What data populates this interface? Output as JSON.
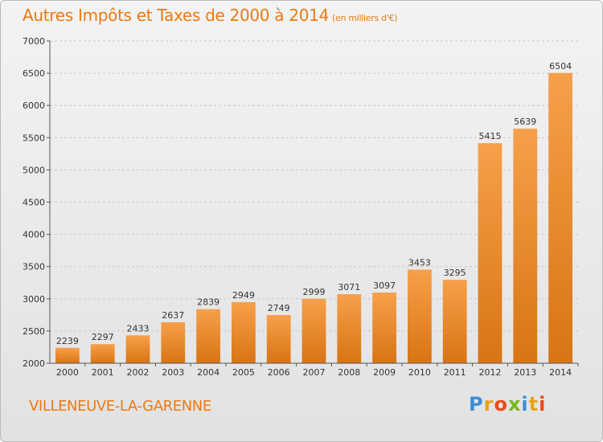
{
  "header": {
    "title": "Autres Impôts et Taxes de 2000 à 2014",
    "unit": "(en milliers d'€)"
  },
  "footer": {
    "town": "VILLENEUVE-LA-GARENNE",
    "logo": {
      "letters": [
        "P",
        "r",
        "o",
        "x",
        "i",
        "t",
        "i"
      ],
      "colors": [
        "#3a8fd6",
        "#e8a21a",
        "#e84c1a",
        "#78b81e",
        "#3a8fd6",
        "#e8a21a",
        "#e84c1a"
      ]
    }
  },
  "chart_data": {
    "type": "bar",
    "categories": [
      "2000",
      "2001",
      "2002",
      "2003",
      "2004",
      "2005",
      "2006",
      "2007",
      "2008",
      "2009",
      "2010",
      "2011",
      "2012",
      "2013",
      "2014"
    ],
    "values": [
      2239,
      2297,
      2433,
      2637,
      2839,
      2949,
      2749,
      2999,
      3071,
      3097,
      3453,
      3295,
      5415,
      5639,
      6504
    ],
    "title": "Autres Impôts et Taxes de 2000 à 2014",
    "xlabel": "",
    "ylabel": "",
    "ylim": [
      2000,
      7000
    ],
    "yticks": [
      2000,
      2500,
      3000,
      3500,
      4000,
      4500,
      5000,
      5500,
      6000,
      6500,
      7000
    ],
    "grid": true,
    "bar_color_top": "#f7a04a",
    "bar_color_bottom": "#d87414"
  }
}
